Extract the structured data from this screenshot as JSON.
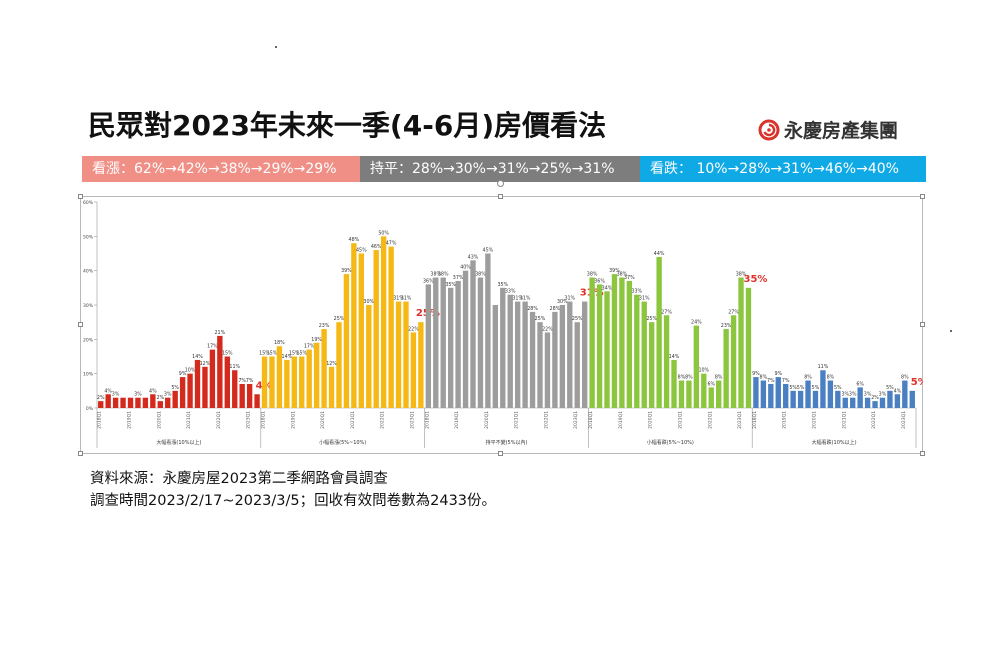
{
  "title": "民眾對2023年未來一季(4-6月)房價看法",
  "brand": {
    "name": "永慶房產集團",
    "logo_icon": "spiral-logo-icon",
    "logo_color": "#d9342b"
  },
  "banners": {
    "up": {
      "text": "看漲：62%→42%→38%→29%→29%",
      "color": "#ef8f86"
    },
    "flat": {
      "text": "持平：28%→30%→31%→25%→31%",
      "color": "#7d7d7d"
    },
    "down": {
      "text": "看跌： 10%→28%→31%→46%→40%",
      "color": "#0fa9e6"
    }
  },
  "notes": {
    "source": "資料來源：永慶房屋2023第二季網路會員調查",
    "survey": "調查時間2023/2/17~2023/3/5；回收有效問卷數為2433份。"
  },
  "chart_data": {
    "type": "bar",
    "ylim": [
      0,
      60
    ],
    "y_ticks": [
      "0%",
      "10%",
      "20%",
      "30%",
      "40%",
      "50%",
      "60%"
    ],
    "x_tick_labels": [
      "2018Q1",
      "2019Q1",
      "2020Q1",
      "2021Q1",
      "2022Q1",
      "2023Q1"
    ],
    "groups": [
      {
        "name": "大幅看漲(10%以上)",
        "color": "#d42a1e",
        "values": [
          2,
          4,
          3,
          3,
          3,
          3,
          3,
          4,
          2,
          3,
          5,
          9,
          10,
          14,
          12,
          17,
          21,
          15,
          11,
          7,
          7,
          4
        ],
        "labels": [
          "2%",
          "4%",
          "3%",
          "",
          "",
          "3%",
          "",
          "4%",
          "2%",
          "3%",
          "5%",
          "9%",
          "10%",
          "14%",
          "12%",
          "17%",
          "21%",
          "15%",
          "11%",
          "7%",
          "7%",
          "4%"
        ],
        "highlight": "4%"
      },
      {
        "name": "小幅看漲(5%~10%)",
        "color": "#f5b814",
        "values": [
          15,
          15,
          18,
          14,
          15,
          15,
          17,
          19,
          23,
          12,
          25,
          39,
          48,
          45,
          30,
          46,
          50,
          47,
          31,
          31,
          22,
          25
        ],
        "labels": [
          "15%",
          "15%",
          "18%",
          "14%",
          "15%",
          "15%",
          "17%",
          "19%",
          "23%",
          "12%",
          "25%",
          "39%",
          "48%",
          "45%",
          "30%",
          "46%",
          "50%",
          "47%",
          "31%",
          "31%",
          "22%",
          "25%"
        ],
        "highlight": "25%"
      },
      {
        "name": "持平不變(5%以內)",
        "color": "#9d9d9d",
        "values": [
          36,
          38,
          38,
          35,
          37,
          40,
          43,
          38,
          45,
          30,
          35,
          33,
          31,
          31,
          28,
          25,
          22,
          28,
          30,
          31,
          25,
          31
        ],
        "labels": [
          "36%",
          "38%",
          "38%",
          "35%",
          "37%",
          "40%",
          "43%",
          "38%",
          "45%",
          "",
          "35%",
          "33%",
          "31%",
          "31%",
          "28%",
          "25%",
          "22%",
          "28%",
          "30%",
          "31%",
          "25%",
          "31%"
        ],
        "highlight": "31%"
      },
      {
        "name": "小幅看跌(5%~10%)",
        "color": "#8cc63f",
        "values": [
          38,
          36,
          34,
          39,
          38,
          37,
          33,
          31,
          25,
          44,
          27,
          14,
          8,
          8,
          24,
          10,
          6,
          8,
          23,
          27,
          38,
          35
        ],
        "labels": [
          "38%",
          "36%",
          "34%",
          "39%",
          "38%",
          "37%",
          "33%",
          "31%",
          "25%",
          "44%",
          "27%",
          "14%",
          "8%",
          "8%",
          "24%",
          "10%",
          "6%",
          "8%",
          "23%",
          "27%",
          "38%",
          "35%"
        ],
        "highlight": "35%"
      },
      {
        "name": "大幅看跌(10%以上)",
        "color": "#4a7fc1",
        "values": [
          9,
          8,
          7,
          9,
          7,
          5,
          5,
          8,
          5,
          11,
          8,
          5,
          3,
          3,
          6,
          3,
          2,
          3,
          5,
          4,
          8,
          5
        ],
        "labels": [
          "9%",
          "8%",
          "7%",
          "9%",
          "7%",
          "5%",
          "5%",
          "8%",
          "5%",
          "11%",
          "8%",
          "5%",
          "3%",
          "3%",
          "6%",
          "3%",
          "2%",
          "3%",
          "5%",
          "4%",
          "8%",
          "5%"
        ],
        "highlight": "5%"
      }
    ],
    "highlight_color": "#e0322a"
  }
}
